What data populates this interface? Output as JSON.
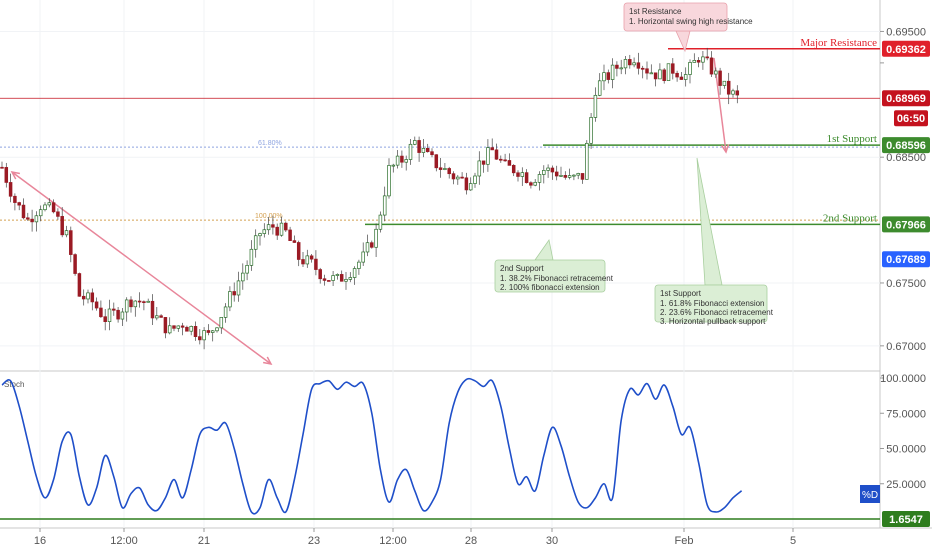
{
  "chart_data": [
    {
      "type": "candlestick",
      "ylim": [
        0.668,
        0.6975
      ],
      "y_ticks": [
        {
          "value": 0.695,
          "label": "0.69500"
        },
        {
          "value": 0.6925,
          "label": ""
        },
        {
          "value": 0.685,
          "label": "0.68500"
        },
        {
          "value": 0.675,
          "label": "0.67500"
        },
        {
          "value": 0.67,
          "label": "0.67000"
        }
      ],
      "x_ticks": [
        "16",
        "12:00",
        "21",
        "23",
        "12:00",
        "28",
        "30",
        "Feb",
        "5"
      ],
      "close_path": [
        [
          0,
          0.6842
        ],
        [
          3,
          0.6815
        ],
        [
          6,
          0.68
        ],
        [
          9,
          0.6812
        ],
        [
          12,
          0.6806
        ],
        [
          15,
          0.6787
        ],
        [
          18,
          0.674
        ],
        [
          21,
          0.6735
        ],
        [
          24,
          0.6722
        ],
        [
          27,
          0.6727
        ],
        [
          30,
          0.6737
        ],
        [
          33,
          0.6735
        ],
        [
          36,
          0.6722
        ],
        [
          39,
          0.6712
        ],
        [
          42,
          0.6718
        ],
        [
          45,
          0.6712
        ],
        [
          48,
          0.6708
        ],
        [
          51,
          0.6725
        ],
        [
          54,
          0.6745
        ],
        [
          57,
          0.6765
        ],
        [
          60,
          0.679
        ],
        [
          63,
          0.6795
        ],
        [
          66,
          0.679
        ],
        [
          69,
          0.677
        ],
        [
          72,
          0.6765
        ],
        [
          75,
          0.6755
        ],
        [
          78,
          0.6752
        ],
        [
          81,
          0.676
        ],
        [
          84,
          0.677
        ],
        [
          87,
          0.679
        ],
        [
          90,
          0.684
        ],
        [
          93,
          0.6848
        ],
        [
          96,
          0.6862
        ],
        [
          99,
          0.685
        ],
        [
          102,
          0.6842
        ],
        [
          105,
          0.6835
        ],
        [
          108,
          0.683
        ],
        [
          111,
          0.6845
        ],
        [
          114,
          0.6855
        ],
        [
          117,
          0.6842
        ],
        [
          120,
          0.684
        ],
        [
          123,
          0.6832
        ],
        [
          126,
          0.684
        ],
        [
          129,
          0.6838
        ],
        [
          132,
          0.6832
        ],
        [
          135,
          0.6835
        ],
        [
          138,
          0.6905
        ],
        [
          141,
          0.6915
        ],
        [
          144,
          0.6925
        ],
        [
          147,
          0.693
        ],
        [
          150,
          0.692
        ],
        [
          153,
          0.6915
        ],
        [
          156,
          0.692
        ],
        [
          159,
          0.6915
        ],
        [
          162,
          0.693
        ],
        [
          165,
          0.692
        ],
        [
          168,
          0.6905
        ],
        [
          171,
          0.6897
        ]
      ],
      "levels": [
        {
          "name": "Major Resistance",
          "value": 0.69362,
          "label": "0.69362",
          "color": "#e0202a"
        },
        {
          "name": "",
          "value": 0.68969,
          "label": "0.68969",
          "countdown": "06:50",
          "color": "#c4121e"
        },
        {
          "name": "1st Support",
          "value": 0.68596,
          "label": "0.68596",
          "color": "#3d8b2e"
        },
        {
          "name": "2nd Support",
          "value": 0.67966,
          "label": "0.67966",
          "color": "#3d8b2e"
        },
        {
          "name": "",
          "value": 0.67689,
          "label": "0.67689",
          "color": "#2962ff"
        }
      ],
      "fib_labels": [
        {
          "label": "61.80%",
          "value": 0.6858,
          "color": "#8ea4e0"
        },
        {
          "label": "100.00%",
          "value": 0.68,
          "color": "#d4a050"
        }
      ],
      "annotations": {
        "resistance": {
          "title": "1st Resistance",
          "lines": [
            "1. Horizontal swing high resistance"
          ]
        },
        "support2": {
          "title": "2nd Support",
          "lines": [
            "1. 38.2% Fibonacci retracement",
            "2. 100% fibonacci extension"
          ]
        },
        "support1": {
          "title": "1st Support",
          "lines": [
            "1. 61.8% Fibonacci extension",
            "2. 23.6% Fibonacci retracement",
            "3. Horizontal pullback support"
          ]
        }
      }
    },
    {
      "type": "line",
      "title": "Stoch",
      "ylim": [
        0,
        100
      ],
      "y_ticks": [
        {
          "value": 100,
          "label": "100.0000"
        },
        {
          "value": 75,
          "label": "75.0000"
        },
        {
          "value": 50,
          "label": "50.0000"
        },
        {
          "value": 25,
          "label": "25.0000"
        }
      ],
      "series": [
        {
          "name": "%D",
          "color": "#1f4fc9",
          "points": [
            [
              0,
              95
            ],
            [
              2,
              98
            ],
            [
              4,
              80
            ],
            [
              6,
              55
            ],
            [
              8,
              30
            ],
            [
              10,
              15
            ],
            [
              12,
              28
            ],
            [
              14,
              55
            ],
            [
              16,
              60
            ],
            [
              18,
              30
            ],
            [
              20,
              10
            ],
            [
              22,
              22
            ],
            [
              24,
              45
            ],
            [
              26,
              30
            ],
            [
              28,
              8
            ],
            [
              30,
              18
            ],
            [
              32,
              22
            ],
            [
              34,
              10
            ],
            [
              36,
              6
            ],
            [
              38,
              15
            ],
            [
              40,
              28
            ],
            [
              42,
              15
            ],
            [
              44,
              35
            ],
            [
              46,
              60
            ],
            [
              48,
              65
            ],
            [
              50,
              63
            ],
            [
              52,
              68
            ],
            [
              54,
              50
            ],
            [
              56,
              25
            ],
            [
              58,
              5
            ],
            [
              60,
              8
            ],
            [
              62,
              28
            ],
            [
              64,
              15
            ],
            [
              66,
              5
            ],
            [
              68,
              28
            ],
            [
              70,
              60
            ],
            [
              72,
              92
            ],
            [
              74,
              96
            ],
            [
              76,
              98
            ],
            [
              78,
              92
            ],
            [
              80,
              97
            ],
            [
              82,
              94
            ],
            [
              84,
              96
            ],
            [
              86,
              75
            ],
            [
              88,
              35
            ],
            [
              90,
              12
            ],
            [
              92,
              28
            ],
            [
              94,
              35
            ],
            [
              96,
              20
            ],
            [
              98,
              6
            ],
            [
              100,
              12
            ],
            [
              102,
              28
            ],
            [
              104,
              68
            ],
            [
              106,
              90
            ],
            [
              108,
              99
            ],
            [
              110,
              98
            ],
            [
              112,
              94
            ],
            [
              114,
              98
            ],
            [
              116,
              80
            ],
            [
              118,
              50
            ],
            [
              120,
              25
            ],
            [
              122,
              30
            ],
            [
              124,
              20
            ],
            [
              126,
              45
            ],
            [
              128,
              65
            ],
            [
              130,
              52
            ],
            [
              132,
              30
            ],
            [
              134,
              12
            ],
            [
              136,
              8
            ],
            [
              138,
              15
            ],
            [
              140,
              25
            ],
            [
              142,
              15
            ],
            [
              144,
              70
            ],
            [
              146,
              92
            ],
            [
              148,
              88
            ],
            [
              150,
              96
            ],
            [
              152,
              85
            ],
            [
              154,
              95
            ],
            [
              156,
              80
            ],
            [
              158,
              60
            ],
            [
              160,
              65
            ],
            [
              162,
              40
            ],
            [
              164,
              10
            ],
            [
              166,
              5
            ],
            [
              168,
              8
            ],
            [
              170,
              15
            ],
            [
              172,
              20
            ]
          ]
        }
      ],
      "levels": [
        {
          "value": 0,
          "label": "1.6547",
          "color": "#2e7d1e"
        }
      ]
    }
  ]
}
